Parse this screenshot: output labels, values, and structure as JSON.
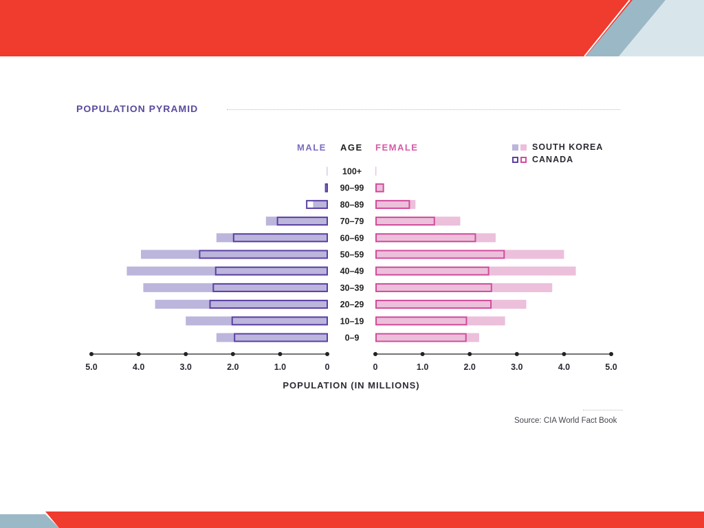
{
  "colors": {
    "brand_red": "#f03b2f",
    "accent_blue": "#9bb8c6",
    "light_blue": "#d8e6ec",
    "male_south_korea": "#bcb5dc",
    "male_canada_outline": "#5b3fa3",
    "female_south_korea": "#ecbfdb",
    "female_canada_outline": "#d14b9c"
  },
  "header_text": {
    "title": "POPULATION PYRAMID",
    "male": "MALE",
    "age": "AGE",
    "female": "FEMALE"
  },
  "legend": [
    {
      "label": "SOUTH KOREA",
      "style": "filled"
    },
    {
      "label": "CANADA",
      "style": "outlined"
    }
  ],
  "source": "Source: CIA World Fact Book",
  "chart_data": {
    "type": "bar",
    "orientation": "horizontal",
    "layout": "population-pyramid",
    "title": "POPULATION PYRAMID",
    "xlabel": "POPULATION (IN MILLIONS)",
    "ylabel": "AGE",
    "xlim": [
      0,
      5
    ],
    "x_ticks": [
      "0",
      "1.0",
      "2.0",
      "3.0",
      "4.0",
      "5.0"
    ],
    "grid": false,
    "legend_position": "top-right",
    "categories": [
      "100+",
      "90–99",
      "80–89",
      "70–79",
      "60–69",
      "50–59",
      "40–49",
      "30–39",
      "20–29",
      "10–19",
      "0–9"
    ],
    "series": [
      {
        "name": "SOUTH KOREA",
        "side": "MALE",
        "values": [
          0.01,
          0.03,
          0.3,
          1.3,
          2.35,
          3.95,
          4.25,
          3.9,
          3.65,
          3.0,
          2.35
        ]
      },
      {
        "name": "SOUTH KOREA",
        "side": "FEMALE",
        "values": [
          0.02,
          0.17,
          0.85,
          1.8,
          2.55,
          4.0,
          4.25,
          3.75,
          3.2,
          2.75,
          2.2
        ]
      },
      {
        "name": "CANADA",
        "side": "MALE",
        "values": [
          0.0,
          0.05,
          0.45,
          1.07,
          2.0,
          2.72,
          2.38,
          2.43,
          2.5,
          2.03,
          1.98
        ]
      },
      {
        "name": "CANADA",
        "side": "FEMALE",
        "values": [
          0.0,
          0.17,
          0.72,
          1.25,
          2.12,
          2.73,
          2.4,
          2.46,
          2.45,
          1.93,
          1.92
        ]
      }
    ]
  }
}
